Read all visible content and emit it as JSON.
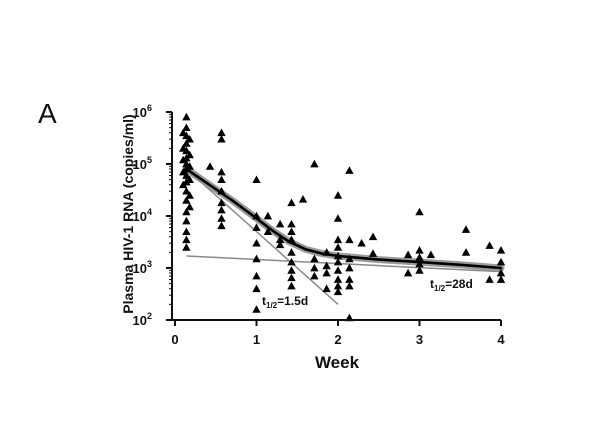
{
  "panel_label": "A",
  "chart_data": {
    "type": "scatter",
    "title": "",
    "xlabel": "Week",
    "ylabel": "Plasma HIV-1 RNA (copies/ml)",
    "x_ticks": [
      "0",
      "1",
      "2",
      "3",
      "4"
    ],
    "y_ticks": [
      {
        "base": "10",
        "exp": "2"
      },
      {
        "base": "10",
        "exp": "3"
      },
      {
        "base": "10",
        "exp": "4"
      },
      {
        "base": "10",
        "exp": "5"
      },
      {
        "base": "10",
        "exp": "6"
      }
    ],
    "xlim": [
      0,
      4
    ],
    "ylim": [
      100,
      1000000
    ],
    "y_scale": "log",
    "grid": false,
    "colors": {
      "points": "#000000",
      "fit": "#000000",
      "fit_band": "#9a9a9a",
      "phase_lines": "#8a8a8a"
    },
    "annotations": [
      {
        "id": "t1",
        "sub": "1/2",
        "value": "=1.5d"
      },
      {
        "id": "t2",
        "sub": "1/2",
        "value": "=28d"
      }
    ],
    "points": [
      {
        "x": 0.14,
        "y": 800000
      },
      {
        "x": 0.14,
        "y": 500000
      },
      {
        "x": 0.14,
        "y": 350000
      },
      {
        "x": 0.14,
        "y": 250000
      },
      {
        "x": 0.14,
        "y": 180000
      },
      {
        "x": 0.14,
        "y": 130000
      },
      {
        "x": 0.14,
        "y": 100000
      },
      {
        "x": 0.14,
        "y": 80000
      },
      {
        "x": 0.14,
        "y": 60000
      },
      {
        "x": 0.14,
        "y": 45000
      },
      {
        "x": 0.14,
        "y": 30000
      },
      {
        "x": 0.14,
        "y": 20000
      },
      {
        "x": 0.14,
        "y": 12000
      },
      {
        "x": 0.14,
        "y": 8000
      },
      {
        "x": 0.14,
        "y": 5000
      },
      {
        "x": 0.14,
        "y": 3500
      },
      {
        "x": 0.14,
        "y": 2500
      },
      {
        "x": 0.1,
        "y": 400000
      },
      {
        "x": 0.1,
        "y": 200000
      },
      {
        "x": 0.1,
        "y": 120000
      },
      {
        "x": 0.1,
        "y": 70000
      },
      {
        "x": 0.1,
        "y": 40000
      },
      {
        "x": 0.18,
        "y": 300000
      },
      {
        "x": 0.18,
        "y": 150000
      },
      {
        "x": 0.18,
        "y": 90000
      },
      {
        "x": 0.18,
        "y": 50000
      },
      {
        "x": 0.18,
        "y": 25000
      },
      {
        "x": 0.18,
        "y": 15000
      },
      {
        "x": 0.43,
        "y": 90000
      },
      {
        "x": 0.57,
        "y": 400000
      },
      {
        "x": 0.57,
        "y": 300000
      },
      {
        "x": 0.57,
        "y": 70000
      },
      {
        "x": 0.57,
        "y": 50000
      },
      {
        "x": 0.57,
        "y": 30000
      },
      {
        "x": 0.57,
        "y": 18000
      },
      {
        "x": 0.57,
        "y": 13000
      },
      {
        "x": 0.57,
        "y": 9000
      },
      {
        "x": 0.57,
        "y": 6500
      },
      {
        "x": 1.0,
        "y": 50000
      },
      {
        "x": 1.0,
        "y": 10000
      },
      {
        "x": 1.0,
        "y": 6000
      },
      {
        "x": 1.0,
        "y": 3000
      },
      {
        "x": 1.0,
        "y": 1500
      },
      {
        "x": 1.0,
        "y": 700
      },
      {
        "x": 1.0,
        "y": 400
      },
      {
        "x": 1.0,
        "y": 160
      },
      {
        "x": 1.14,
        "y": 10000
      },
      {
        "x": 1.14,
        "y": 5000
      },
      {
        "x": 1.29,
        "y": 7000
      },
      {
        "x": 1.29,
        "y": 3500
      },
      {
        "x": 1.29,
        "y": 2800
      },
      {
        "x": 1.43,
        "y": 18000
      },
      {
        "x": 1.43,
        "y": 7000
      },
      {
        "x": 1.43,
        "y": 5000
      },
      {
        "x": 1.43,
        "y": 3500
      },
      {
        "x": 1.43,
        "y": 2000
      },
      {
        "x": 1.43,
        "y": 1300
      },
      {
        "x": 1.43,
        "y": 900
      },
      {
        "x": 1.43,
        "y": 650
      },
      {
        "x": 1.43,
        "y": 450
      },
      {
        "x": 1.57,
        "y": 21000
      },
      {
        "x": 1.71,
        "y": 100000
      },
      {
        "x": 1.71,
        "y": 1500
      },
      {
        "x": 1.71,
        "y": 1000
      },
      {
        "x": 1.71,
        "y": 700
      },
      {
        "x": 1.86,
        "y": 2000
      },
      {
        "x": 1.86,
        "y": 1100
      },
      {
        "x": 1.86,
        "y": 800
      },
      {
        "x": 1.86,
        "y": 400
      },
      {
        "x": 2.0,
        "y": 25000
      },
      {
        "x": 2.0,
        "y": 9000
      },
      {
        "x": 2.0,
        "y": 3500
      },
      {
        "x": 2.0,
        "y": 2500
      },
      {
        "x": 2.0,
        "y": 1700
      },
      {
        "x": 2.0,
        "y": 1300
      },
      {
        "x": 2.0,
        "y": 900
      },
      {
        "x": 2.0,
        "y": 600
      },
      {
        "x": 2.0,
        "y": 450
      },
      {
        "x": 2.0,
        "y": 350
      },
      {
        "x": 2.14,
        "y": 75000
      },
      {
        "x": 2.14,
        "y": 3500
      },
      {
        "x": 2.14,
        "y": 1500
      },
      {
        "x": 2.14,
        "y": 1000
      },
      {
        "x": 2.14,
        "y": 600
      },
      {
        "x": 2.14,
        "y": 450
      },
      {
        "x": 2.14,
        "y": 110
      },
      {
        "x": 2.29,
        "y": 3000
      },
      {
        "x": 2.43,
        "y": 4000
      },
      {
        "x": 2.43,
        "y": 1900
      },
      {
        "x": 2.86,
        "y": 1800
      },
      {
        "x": 2.86,
        "y": 800
      },
      {
        "x": 3.0,
        "y": 12000
      },
      {
        "x": 3.0,
        "y": 2200
      },
      {
        "x": 3.0,
        "y": 1600
      },
      {
        "x": 3.0,
        "y": 1200
      },
      {
        "x": 3.0,
        "y": 900
      },
      {
        "x": 3.14,
        "y": 1800
      },
      {
        "x": 3.57,
        "y": 5500
      },
      {
        "x": 3.57,
        "y": 2000
      },
      {
        "x": 3.86,
        "y": 2700
      },
      {
        "x": 3.86,
        "y": 600
      },
      {
        "x": 4.0,
        "y": 2200
      },
      {
        "x": 4.0,
        "y": 1300
      },
      {
        "x": 4.0,
        "y": 800
      },
      {
        "x": 4.0,
        "y": 600
      }
    ],
    "fit_curve": [
      {
        "x": 0.14,
        "y": 80000
      },
      {
        "x": 0.4,
        "y": 42000
      },
      {
        "x": 0.7,
        "y": 20000
      },
      {
        "x": 1.0,
        "y": 9000
      },
      {
        "x": 1.2,
        "y": 5200
      },
      {
        "x": 1.4,
        "y": 3200
      },
      {
        "x": 1.6,
        "y": 2300
      },
      {
        "x": 1.8,
        "y": 1900
      },
      {
        "x": 2.0,
        "y": 1700
      },
      {
        "x": 2.5,
        "y": 1450
      },
      {
        "x": 3.0,
        "y": 1300
      },
      {
        "x": 3.5,
        "y": 1150
      },
      {
        "x": 4.0,
        "y": 1000
      }
    ],
    "fast_phase_line": [
      {
        "x": 0.14,
        "y": 80000
      },
      {
        "x": 2.0,
        "y": 200
      }
    ],
    "slow_phase_line": [
      {
        "x": 0.14,
        "y": 1700
      },
      {
        "x": 4.0,
        "y": 850
      }
    ]
  }
}
